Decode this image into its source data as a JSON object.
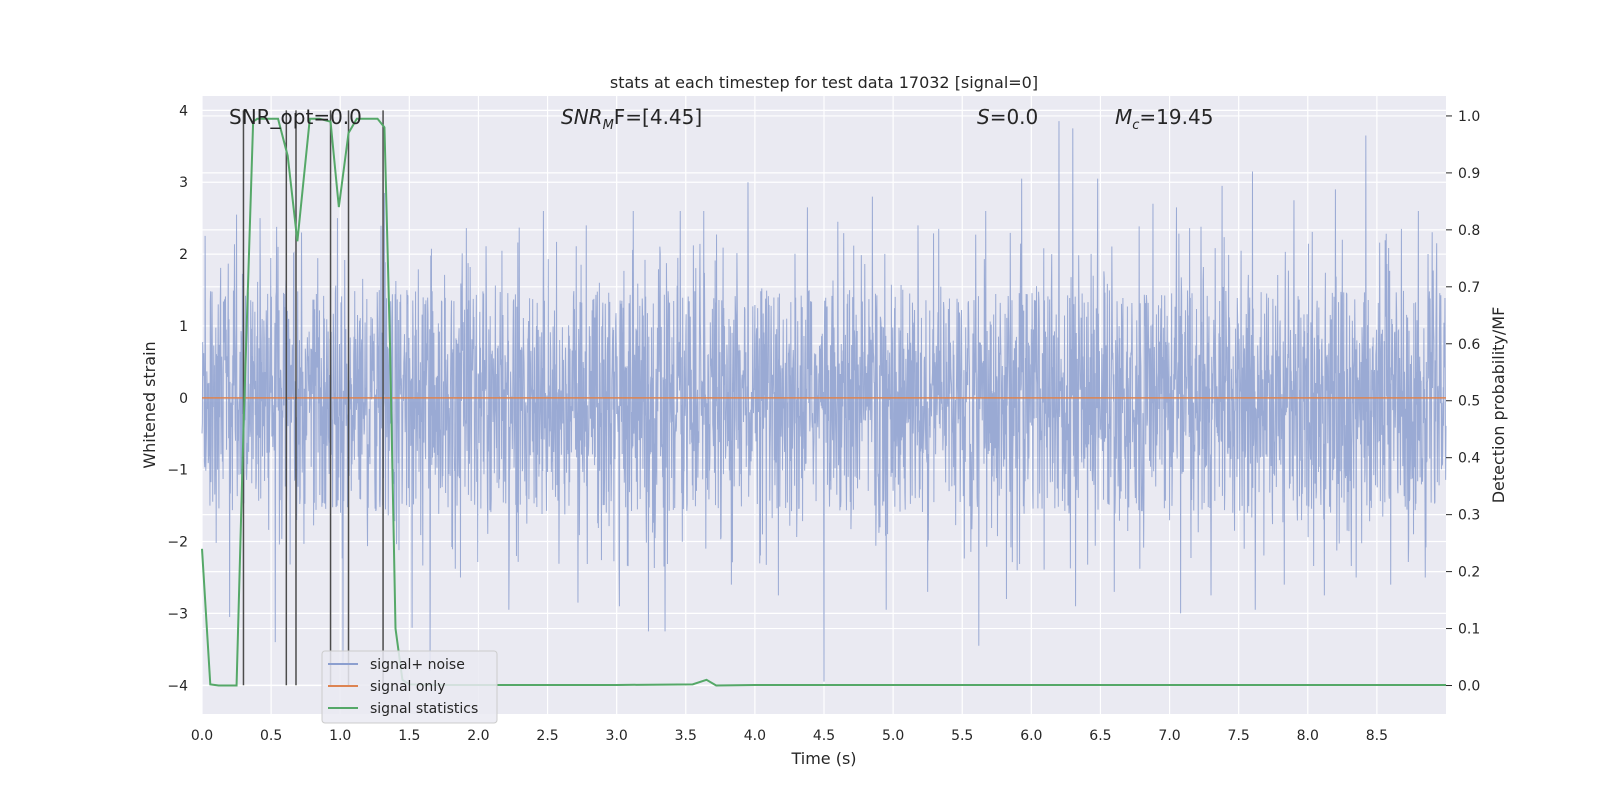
{
  "chart_data": {
    "type": "line",
    "title": "stats at each timestep for test data 17032 [signal=0]",
    "xlabel": "Time (s)",
    "ylabel_left": "Whitened strain",
    "ylabel_right": "Detection probability/MF",
    "xlim": [
      0.0,
      9.0
    ],
    "ylim_left": [
      -4.4,
      4.2
    ],
    "ylim_right": [
      -0.05,
      1.035
    ],
    "x_ticks": [
      0.0,
      0.5,
      1.0,
      1.5,
      2.0,
      2.5,
      3.0,
      3.5,
      4.0,
      4.5,
      5.0,
      5.5,
      6.0,
      6.5,
      7.0,
      7.5,
      8.0,
      8.5
    ],
    "x_tick_labels": [
      "0.0",
      "0.5",
      "1.0",
      "1.5",
      "2.0",
      "2.5",
      "3.0",
      "3.5",
      "4.0",
      "4.5",
      "5.0",
      "5.5",
      "6.0",
      "6.5",
      "7.0",
      "7.5",
      "8.0",
      "8.5"
    ],
    "y_left_ticks": [
      4,
      3,
      2,
      1,
      0,
      -1,
      -2,
      -3,
      -4
    ],
    "y_left_tick_labels": [
      "4",
      "3",
      "2",
      "1",
      "0",
      "−1",
      "−2",
      "−3",
      "−4"
    ],
    "y_right_ticks": [
      1.0,
      0.9,
      0.8,
      0.7,
      0.6,
      0.5,
      0.4,
      0.3,
      0.2,
      0.1,
      0.0
    ],
    "y_right_tick_labels": [
      "1.0",
      "0.9",
      "0.8",
      "0.7",
      "0.6",
      "0.5",
      "0.4",
      "0.3",
      "0.2",
      "0.1",
      "0.0"
    ],
    "grid": true,
    "legend_position": "bottom-left",
    "annotations": {
      "snr_opt": "SNR_opt=0.0",
      "snr_mf_sym": "SNR",
      "snr_mf_sub": "M",
      "snr_mf_rest": "F=[4.45]",
      "s_sym": "S",
      "s_rest": "=0.0",
      "mc_sym": "M",
      "mc_sub": "c",
      "mc_rest": "=19.45"
    },
    "series": [
      {
        "name": "signal+ noise",
        "color": "#8c9fcf",
        "axis": "left",
        "description": "whitened noisy strain, roughly stationary in about -1.6 to 1.5 with spikes to about 3.9 and -4.0",
        "band": [
          -1.6,
          1.5
        ],
        "positive_spikes": [
          [
            0.2,
            2.6
          ],
          [
            0.25,
            2.55
          ],
          [
            0.42,
            2.5
          ],
          [
            0.55,
            2.1
          ],
          [
            0.72,
            2.3
          ],
          [
            0.98,
            2.5
          ],
          [
            1.32,
            2.85
          ],
          [
            2.47,
            2.6
          ],
          [
            2.78,
            2.4
          ],
          [
            3.12,
            2.6
          ],
          [
            3.46,
            2.6
          ],
          [
            3.63,
            2.6
          ],
          [
            3.95,
            3.0
          ],
          [
            4.38,
            2.65
          ],
          [
            4.6,
            2.45
          ],
          [
            4.85,
            2.8
          ],
          [
            5.18,
            2.4
          ],
          [
            5.67,
            2.6
          ],
          [
            5.93,
            3.05
          ],
          [
            6.2,
            3.85
          ],
          [
            6.3,
            3.75
          ],
          [
            6.48,
            3.05
          ],
          [
            6.88,
            2.7
          ],
          [
            7.05,
            2.65
          ],
          [
            7.38,
            2.95
          ],
          [
            7.6,
            3.15
          ],
          [
            7.9,
            2.75
          ],
          [
            8.2,
            2.9
          ],
          [
            8.42,
            3.65
          ],
          [
            8.8,
            2.6
          ]
        ],
        "negative_spikes": [
          [
            0.2,
            -3.05
          ],
          [
            0.53,
            -3.4
          ],
          [
            1.02,
            -3.7
          ],
          [
            1.52,
            -3.2
          ],
          [
            1.65,
            -3.8
          ],
          [
            1.87,
            -2.5
          ],
          [
            2.22,
            -2.95
          ],
          [
            2.72,
            -2.85
          ],
          [
            3.02,
            -2.9
          ],
          [
            3.23,
            -3.25
          ],
          [
            3.35,
            -3.25
          ],
          [
            3.83,
            -2.6
          ],
          [
            4.17,
            -2.75
          ],
          [
            4.5,
            -3.95
          ],
          [
            4.95,
            -2.95
          ],
          [
            5.25,
            -2.7
          ],
          [
            5.62,
            -3.45
          ],
          [
            5.82,
            -2.8
          ],
          [
            6.32,
            -2.9
          ],
          [
            6.6,
            -2.7
          ],
          [
            7.08,
            -3.0
          ],
          [
            7.3,
            -2.75
          ],
          [
            7.62,
            -2.95
          ],
          [
            7.83,
            -2.6
          ],
          [
            8.12,
            -2.75
          ],
          [
            8.35,
            -2.5
          ],
          [
            8.6,
            -2.6
          ],
          [
            8.85,
            -2.5
          ]
        ]
      },
      {
        "name": "signal only",
        "color": "#dd8452",
        "axis": "left",
        "x": [
          0.0,
          9.0
        ],
        "values": [
          0.0,
          0.0
        ]
      },
      {
        "name": "signal statistics",
        "color": "#55a868",
        "axis": "right",
        "x": [
          0.0,
          0.06,
          0.12,
          0.2,
          0.25,
          0.3,
          0.37,
          0.4,
          0.45,
          0.55,
          0.62,
          0.69,
          0.78,
          0.85,
          0.93,
          0.99,
          1.06,
          1.12,
          1.2,
          1.27,
          1.32,
          1.36,
          1.4,
          1.45,
          1.5,
          1.7,
          2.0,
          3.0,
          3.55,
          3.65,
          3.72,
          4.0,
          5.0,
          6.0,
          7.0,
          8.0,
          9.0
        ],
        "values": [
          0.24,
          0.002,
          0.0,
          0.0,
          0.0,
          0.45,
          0.99,
          0.995,
          0.995,
          0.995,
          0.93,
          0.78,
          0.995,
          0.995,
          0.99,
          0.84,
          0.97,
          0.995,
          0.995,
          0.995,
          0.98,
          0.6,
          0.1,
          0.01,
          0.002,
          0.001,
          0.001,
          0.001,
          0.002,
          0.01,
          0.0,
          0.001,
          0.001,
          0.001,
          0.001,
          0.001,
          0.001
        ]
      }
    ],
    "vertical_markers": {
      "color": "#4c4c4c",
      "x": [
        0.3,
        0.61,
        0.68,
        0.93,
        1.06,
        1.31
      ]
    }
  }
}
